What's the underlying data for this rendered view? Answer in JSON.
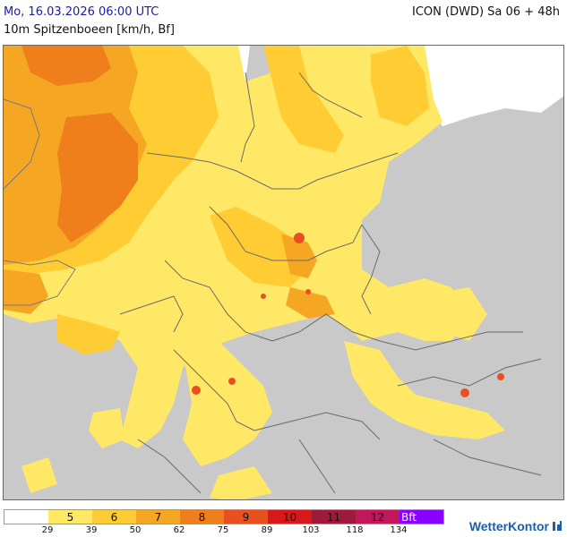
{
  "header": {
    "valid_time": "Mo, 16.03.2026 06:00 UTC",
    "model_run": "ICON (DWD) Sa 06 + 48h",
    "parameter": "10m Spitzenboeen [km/h, Bf]"
  },
  "legend": {
    "classes": [
      {
        "label": "",
        "color": "#ffffff"
      },
      {
        "label": "5",
        "color": "#ffe866"
      },
      {
        "label": "6",
        "color": "#ffcc33"
      },
      {
        "label": "7",
        "color": "#f5a623"
      },
      {
        "label": "8",
        "color": "#ef7f1a"
      },
      {
        "label": "9",
        "color": "#e8501f"
      },
      {
        "label": "10",
        "color": "#d7191c"
      },
      {
        "label": "11",
        "color": "#9e1a3a"
      },
      {
        "label": "12",
        "color": "#c2185b"
      },
      {
        "label": "Bft",
        "color": "#8a00ff"
      }
    ],
    "thresholds": [
      "29",
      "39",
      "50",
      "62",
      "75",
      "89",
      "103",
      "118",
      "134"
    ]
  },
  "brand": {
    "name": "WetterKontor",
    "icon": "wetterkontor-logo-icon"
  },
  "colors": {
    "sea_and_outside": "#c9c9c9",
    "header_date": "#1a1aa6",
    "border_lines": "#6b6b6b"
  }
}
